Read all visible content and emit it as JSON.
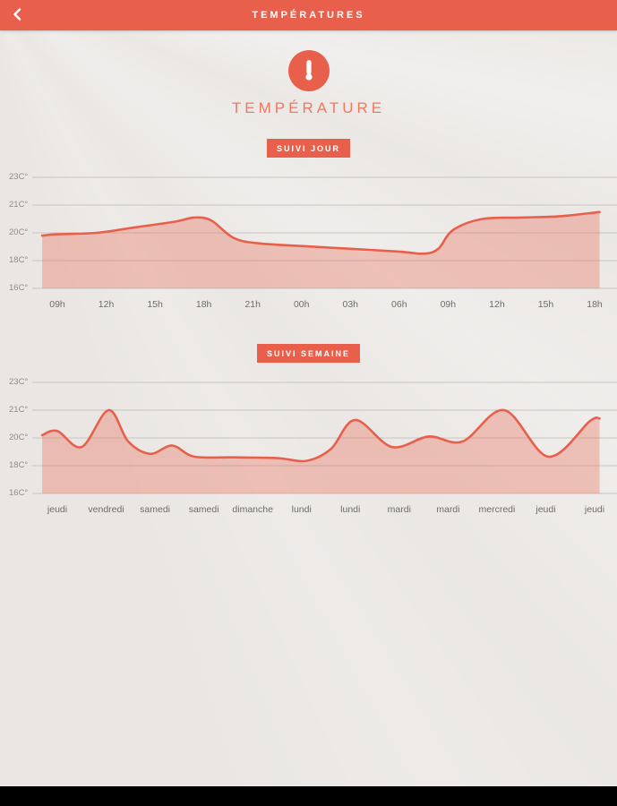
{
  "header": {
    "title": "TEMPÉRATURES"
  },
  "hero": {
    "title": "TEMPÉRATURE"
  },
  "colors": {
    "accent": "#e8604c",
    "background": "#e9e6e3",
    "grid": "#c7c5c2",
    "fill_opacity": 0.32
  },
  "chart_data": [
    {
      "type": "area",
      "title": "SUIVI JOUR",
      "categories": [
        "09h",
        "12h",
        "15h",
        "18h",
        "21h",
        "00h",
        "03h",
        "06h",
        "09h",
        "12h",
        "15h",
        "18h"
      ],
      "y_tick_labels": [
        "23C°",
        "21C°",
        "20C°",
        "18C°",
        "16C°"
      ],
      "y_tick_values": [
        23,
        21,
        20,
        18,
        16
      ],
      "ylim": [
        16,
        23
      ],
      "grid": true,
      "unit": "°C",
      "legend": "none",
      "points": [
        [
          -0.31,
          19.8
        ],
        [
          0,
          19.9
        ],
        [
          0.8,
          20.0
        ],
        [
          1.6,
          20.2
        ],
        [
          2.4,
          20.4
        ],
        [
          2.8,
          20.55
        ],
        [
          3.15,
          20.45
        ],
        [
          3.6,
          19.65
        ],
        [
          4.1,
          19.25
        ],
        [
          5,
          19.05
        ],
        [
          6,
          18.85
        ],
        [
          7,
          18.65
        ],
        [
          7.5,
          18.5
        ],
        [
          7.8,
          18.85
        ],
        [
          8.1,
          20.1
        ],
        [
          8.7,
          20.5
        ],
        [
          9.5,
          20.55
        ],
        [
          10.3,
          20.6
        ],
        [
          11.1,
          20.75
        ]
      ]
    },
    {
      "type": "area",
      "title": "SUIVI SEMAINE",
      "categories": [
        "jeudi",
        "vendredi",
        "samedi",
        "samedi",
        "dimanche",
        "lundi",
        "lundi",
        "mardi",
        "mardi",
        "mercredi",
        "jeudi",
        "jeudi"
      ],
      "y_tick_labels": [
        "23C°",
        "21C°",
        "20C°",
        "18C°",
        "16C°"
      ],
      "y_tick_values": [
        23,
        21,
        20,
        18,
        16
      ],
      "ylim": [
        16,
        23
      ],
      "grid": true,
      "unit": "°C",
      "legend": "none",
      "points": [
        [
          -0.31,
          20.1
        ],
        [
          0,
          20.25
        ],
        [
          0.5,
          19.35
        ],
        [
          1.05,
          21.0
        ],
        [
          1.45,
          19.75
        ],
        [
          1.9,
          18.85
        ],
        [
          2.35,
          19.45
        ],
        [
          2.8,
          18.65
        ],
        [
          3.6,
          18.6
        ],
        [
          4.5,
          18.55
        ],
        [
          5.1,
          18.35
        ],
        [
          5.6,
          19.2
        ],
        [
          6.1,
          20.65
        ],
        [
          6.85,
          19.35
        ],
        [
          7.6,
          20.05
        ],
        [
          8.3,
          19.75
        ],
        [
          9.15,
          21.0
        ],
        [
          10.05,
          18.65
        ],
        [
          10.9,
          20.6
        ],
        [
          11.1,
          20.7
        ]
      ]
    }
  ]
}
